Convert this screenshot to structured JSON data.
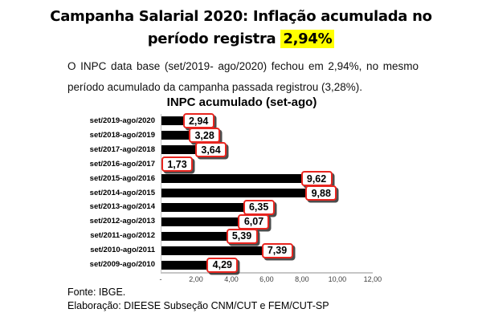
{
  "title": {
    "line1": "Campanha Salarial 2020: Inflação acumulada no",
    "line2_prefix": "período registra ",
    "highlight_text": "2,94%",
    "highlight_color": "#ffff00"
  },
  "paragraph": {
    "line1": "O INPC data base (set/2019- ago/2020) fechou em 2,94%, no mesmo",
    "line2": "período acumulado da campanha passada registrou (3,28%)."
  },
  "chart_data": {
    "type": "bar",
    "orientation": "horizontal",
    "title": "INPC acumulado (set-ago)",
    "categories": [
      "set/2019-ago/2020",
      "set/2018-ago/2019",
      "set/2017-ago/2018",
      "set/2016-ago/2017",
      "set/2015-ago/2016",
      "set/2014-ago/2015",
      "set/2013-ago/2014",
      "set/2012-ago/2013",
      "set/2011-ago/2012",
      "set/2010-ago/2011",
      "set/2009-ago/2010"
    ],
    "values": [
      2.94,
      3.28,
      3.64,
      1.73,
      9.62,
      9.88,
      6.35,
      6.07,
      5.39,
      7.39,
      4.29
    ],
    "value_labels": [
      "2,94",
      "3,28",
      "3,64",
      "1,73",
      "9,62",
      "9,88",
      "6,35",
      "6,07",
      "5,39",
      "7,39",
      "4,29"
    ],
    "x_tick_labels": [
      "-",
      "2,00",
      "4,00",
      "6,00",
      "8,00",
      "10,00",
      "12,00"
    ],
    "x_tick_values": [
      0,
      2,
      4,
      6,
      8,
      10,
      12
    ],
    "xlim": [
      0,
      12.05
    ],
    "grid": false,
    "legend": false,
    "bar_color": "#000000",
    "value_box": {
      "background": "#ffffff",
      "border_color": "#e8251f",
      "text_color": "#000000"
    },
    "axis_color": "#c6c6c6",
    "tick_label_color": "#3f3f3f"
  },
  "footer": {
    "line1": "Fonte: IBGE.",
    "line2": "Elaboração: DIEESE Subseção CNM/CUT e FEM/CUT-SP"
  }
}
